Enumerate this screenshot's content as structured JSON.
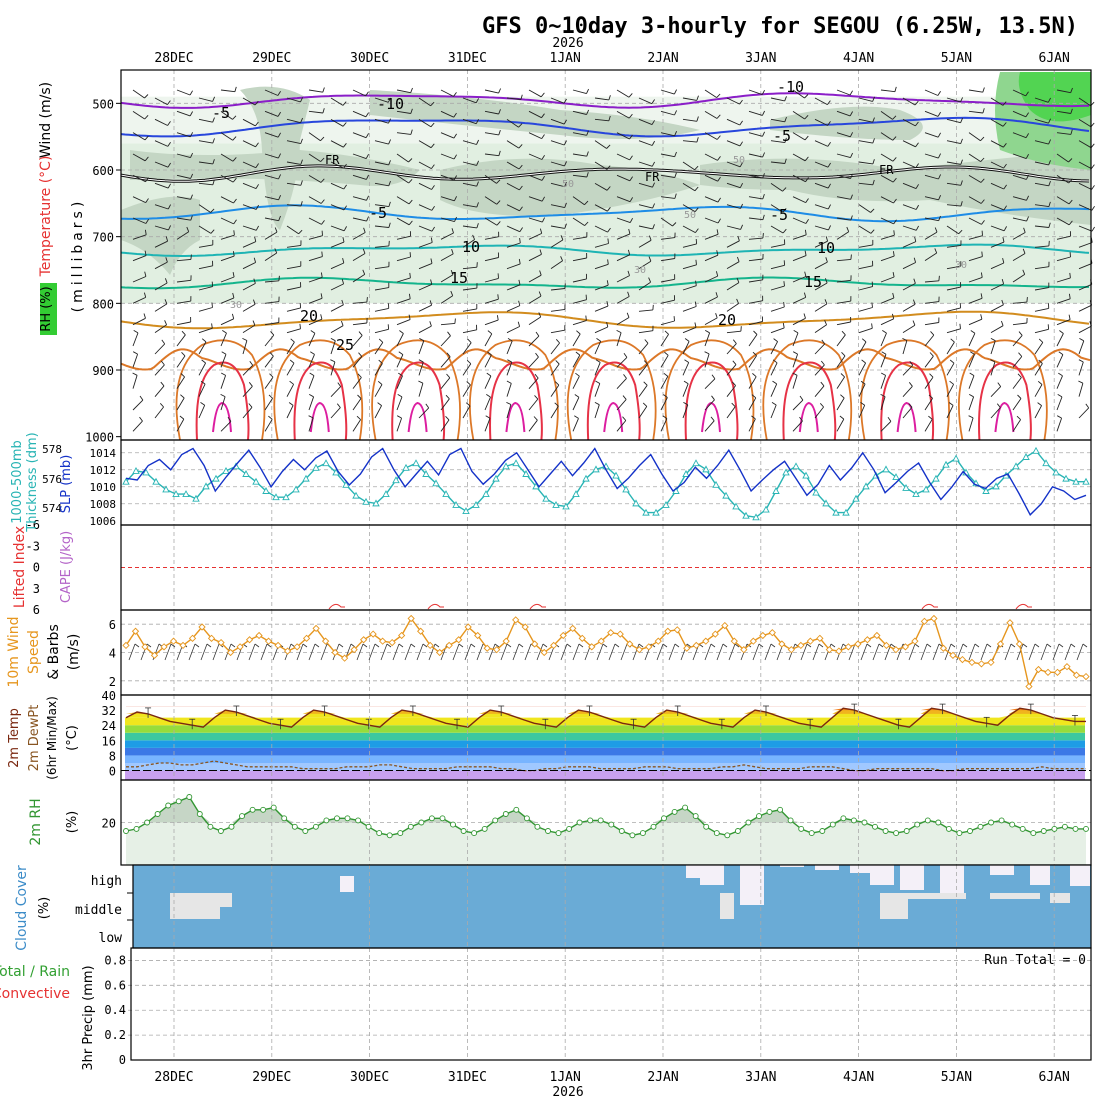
{
  "title": "GFS 0~10day 3-hourly for SEGOU (6.25W, 13.5N)",
  "year": "2026",
  "dates": [
    "28DEC",
    "29DEC",
    "30DEC",
    "31DEC",
    "1JAN",
    "2JAN",
    "3JAN",
    "4JAN",
    "5JAN",
    "6JAN"
  ],
  "run_total": "Run Total = 0",
  "colors": {
    "axis": "#000000",
    "grid": "#aaaaaa",
    "rh_light": "#e1efe1",
    "rh_mid": "#c4d6c4",
    "rh_dark": "#8fd68f",
    "rh_bright": "#52d452",
    "t_minus10": "#8a1ec8",
    "t_minus5": "#2846dc",
    "t_fr": "#111111",
    "t_plus5": "#1e8ce6",
    "t_10": "#1eb4b4",
    "t_15": "#14b48c",
    "t_20": "#d28c1e",
    "t_25": "#dc7828",
    "t_30": "#e63246",
    "t_35": "#dc1ea0",
    "slp": "#1432c8",
    "thickness": "#28b4b4",
    "cape": "#b464c8",
    "lifted": "#e63232",
    "wind10": "#e6961e",
    "temp2m": "#7a2810",
    "dew2m": "#885522",
    "rh2m": "#329632",
    "cloud": "#6aabd6",
    "cloud_bg": "#f4f0f8",
    "precip_total": "#32a032",
    "precip_conv": "#e63232"
  },
  "panels": {
    "upper": {
      "left_labels": [
        "Wind (m/s)",
        "Temperature (°C)",
        "RH (%)"
      ],
      "axis_label": "(millibars)",
      "ticks": [
        "500",
        "600",
        "700",
        "800",
        "900",
        "1000"
      ],
      "contour_labels": {
        "minus10": "-10",
        "minus5": "-5",
        "fr": "FR",
        "plus5": "5",
        "ten": "10",
        "fifteen": "15",
        "twenty": "20",
        "twentyfive": "25",
        "rh30": "30",
        "rh50": "50"
      }
    },
    "slp": {
      "labels": [
        "1000-500mb",
        "Thickness (dm)",
        "SLP (mb)"
      ],
      "left_ticks": [
        "578",
        "576",
        "574"
      ],
      "right_ticks": [
        "1014",
        "1012",
        "1010",
        "1008",
        "1006"
      ]
    },
    "cape": {
      "labels": [
        "Lifted Index",
        "CAPE (J/kg)"
      ],
      "ticks": [
        "-6",
        "-3",
        "0",
        "3",
        "6"
      ]
    },
    "wind10": {
      "labels": [
        "10m Wind",
        "Speed",
        "& Barbs",
        "(m/s)"
      ],
      "ticks": [
        "6",
        "4",
        "2"
      ]
    },
    "temp2m": {
      "labels": [
        "2m Temp",
        "2m DewPt",
        "(6hr Min/Max)",
        "(°C)"
      ],
      "ticks": [
        "40",
        "32",
        "24",
        "16",
        "8",
        "0"
      ]
    },
    "rh2m": {
      "labels": [
        "2m RH",
        "(%)"
      ],
      "ticks": [
        "20"
      ]
    },
    "cloud": {
      "labels": [
        "Cloud Cover",
        "(%)"
      ],
      "levels": [
        "high",
        "middle",
        "low"
      ]
    },
    "precip": {
      "labels": [
        "Total / Rain",
        "Convective",
        "3hr Precip (mm)"
      ],
      "ticks": [
        "0.8",
        "0.6",
        "0.4",
        "0.2",
        "0"
      ]
    }
  },
  "chart_data": [
    {
      "type": "line",
      "name": "SLP (mb)",
      "x_step_hours": 3,
      "ylim": [
        1005.5,
        1015.5
      ],
      "values": [
        1011.0,
        1010.8,
        1012.5,
        1013.2,
        1012.0,
        1013.8,
        1014.5,
        1012.5,
        1009.5,
        1011.2,
        1012.8,
        1014.3,
        1012.3,
        1010.0,
        1011.8,
        1013.2,
        1012.0,
        1013.4,
        1014.2,
        1011.8,
        1010.2,
        1011.5,
        1013.5,
        1014.5,
        1012.0,
        1010.0,
        1011.5,
        1013.0,
        1011.4,
        1013.8,
        1014.5,
        1011.8,
        1010.3,
        1011.5,
        1013.1,
        1014.0,
        1012.0,
        1010.0,
        1011.5,
        1013.0,
        1011.3,
        1012.8,
        1014.5,
        1012.0,
        1009.8,
        1011.0,
        1012.5,
        1013.8,
        1011.5,
        1009.5,
        1010.5,
        1012.3,
        1011.0,
        1012.5,
        1014.3,
        1012.0,
        1009.5,
        1010.8,
        1012.0,
        1013.0,
        1011.0,
        1009.0,
        1010.3,
        1012.5,
        1010.8,
        1012.2,
        1014.0,
        1012.0,
        1009.3,
        1010.5,
        1011.8,
        1012.8,
        1010.5,
        1008.5,
        1010.0,
        1011.8,
        1010.3,
        1009.8,
        1011.0,
        1011.5,
        1009.2,
        1006.7,
        1008.0,
        1010.0,
        1009.5,
        1008.5,
        1009.0
      ]
    },
    {
      "type": "line",
      "name": "1000-500mb Thickness (dm)",
      "x_step_hours": 3,
      "ylim": [
        573.0,
        578.5
      ],
      "values": [
        575.8,
        576.5,
        576.4,
        575.8,
        575.3,
        575.0,
        575.0,
        574.7,
        575.5,
        576.0,
        576.5,
        576.8,
        576.3,
        575.8,
        575.2,
        574.8,
        574.8,
        575.3,
        576.0,
        576.7,
        577.0,
        576.4,
        575.6,
        574.9,
        574.5,
        574.4,
        575.0,
        575.9,
        576.7,
        577.0,
        576.3,
        575.7,
        575.0,
        574.3,
        573.9,
        574.3,
        575.0,
        576.0,
        576.8,
        577.0,
        576.3,
        575.5,
        574.7,
        574.3,
        574.2,
        575.0,
        576.0,
        576.6,
        576.8,
        576.2,
        575.3,
        574.4,
        573.8,
        573.8,
        574.3,
        575.2,
        576.3,
        577.0,
        576.6,
        575.6,
        574.9,
        574.2,
        573.6,
        573.5,
        574.0,
        575.2,
        576.4,
        576.8,
        576.2,
        575.1,
        574.4,
        573.8,
        573.8,
        574.7,
        575.5,
        576.2,
        576.6,
        576.1,
        575.4,
        575.0,
        575.3,
        576.0,
        576.9,
        577.3,
        576.4,
        575.7,
        575.2,
        575.5,
        576.2,
        576.8,
        577.4,
        577.8,
        577.0,
        576.4,
        576.0,
        575.8,
        575.8
      ]
    },
    {
      "type": "line",
      "name": "10m Wind Speed (m/s)",
      "x_step_hours": 3,
      "ylim": [
        1.0,
        7.0
      ],
      "values": [
        4.5,
        5.5,
        4.4,
        3.8,
        4.4,
        4.8,
        4.5,
        5.0,
        5.8,
        5.0,
        4.7,
        4.0,
        4.4,
        4.9,
        5.2,
        4.8,
        4.5,
        4.1,
        4.4,
        5.0,
        5.7,
        4.8,
        4.0,
        3.6,
        4.2,
        4.9,
        5.3,
        4.8,
        4.7,
        5.2,
        6.4,
        5.5,
        4.5,
        4.0,
        4.5,
        4.9,
        5.8,
        5.2,
        4.3,
        4.2,
        4.8,
        6.3,
        5.8,
        4.6,
        4.0,
        4.5,
        5.2,
        5.7,
        5.0,
        4.4,
        4.8,
        5.4,
        5.3,
        4.6,
        4.2,
        4.4,
        4.8,
        5.5,
        5.6,
        4.3,
        4.5,
        4.8,
        5.3,
        5.9,
        4.8,
        4.2,
        4.8,
        5.2,
        5.4,
        4.6,
        4.2,
        4.5,
        4.8,
        5.0,
        4.2,
        4.1,
        4.4,
        4.6,
        4.9,
        5.2,
        4.5,
        4.2,
        4.4,
        4.8,
        6.2,
        6.4,
        4.3,
        3.8,
        3.5,
        3.3,
        3.2,
        3.3,
        4.6,
        6.1,
        4.6,
        1.6,
        2.8,
        2.6,
        2.6,
        3.0,
        2.4,
        2.3
      ]
    },
    {
      "type": "line",
      "name": "2m RH (%)",
      "x_step_hours": 3,
      "ylim": [
        0,
        40
      ],
      "values": [
        16,
        17,
        20,
        24,
        28,
        30,
        32,
        24,
        18,
        16,
        18,
        23,
        26,
        26,
        27,
        22,
        18,
        16,
        18,
        21,
        22,
        22,
        21,
        18,
        15,
        14,
        15,
        18,
        20,
        22,
        22,
        19,
        16,
        15,
        17,
        21,
        24,
        26,
        22,
        18,
        16,
        15,
        17,
        20,
        21,
        21,
        19,
        16,
        14,
        15,
        18,
        22,
        25,
        27,
        23,
        18,
        15,
        14,
        16,
        20,
        23,
        25,
        26,
        21,
        17,
        15,
        16,
        19,
        22,
        21,
        20,
        18,
        16,
        15,
        16,
        19,
        21,
        20,
        17,
        15,
        16,
        18,
        20,
        21,
        19,
        17,
        15,
        16,
        17,
        18,
        17,
        17
      ]
    },
    {
      "type": "line",
      "name": "2m Temp (°C)",
      "x_step_hours": 3,
      "ylim": [
        -5,
        40
      ],
      "values": [
        28,
        31,
        30,
        28,
        26,
        25,
        24,
        23,
        28,
        32,
        31,
        29,
        27,
        25,
        24,
        23,
        28,
        32,
        31,
        29,
        27,
        25,
        24,
        23,
        28,
        32,
        31,
        29,
        27,
        25,
        24,
        23,
        28,
        32,
        31,
        29,
        27,
        25,
        24,
        23,
        28,
        32,
        31,
        29,
        27,
        25,
        24,
        23,
        28,
        32,
        31,
        29,
        27,
        25,
        24,
        23,
        28,
        32,
        31,
        29,
        27,
        25,
        24,
        23,
        28,
        33,
        32,
        30,
        28,
        26,
        24,
        23,
        28,
        33,
        32,
        30,
        28,
        26,
        25,
        24,
        29,
        33,
        32,
        30,
        28,
        27,
        26,
        26
      ]
    },
    {
      "type": "line",
      "name": "2m DewPt (°C)",
      "x_step_hours": 3,
      "ylim": [
        -5,
        40
      ],
      "values": [
        2,
        2,
        3,
        4,
        4,
        3,
        3,
        4,
        5,
        4,
        3,
        2,
        2,
        2,
        2,
        2,
        1,
        1,
        1,
        1,
        2,
        2,
        2,
        3,
        3,
        2,
        1,
        1,
        1,
        1,
        2,
        2,
        2,
        2,
        1,
        1,
        0,
        0,
        1,
        1,
        2,
        2,
        2,
        1,
        1,
        1,
        1,
        2,
        2,
        2,
        1,
        1,
        1,
        1,
        2,
        2,
        3,
        2,
        1,
        1,
        1,
        1,
        2,
        2,
        2,
        1,
        0,
        0,
        1,
        1,
        1,
        1,
        1,
        1,
        0,
        0,
        1,
        1,
        1,
        1,
        1,
        1,
        1,
        2,
        1,
        1,
        1,
        1
      ]
    },
    {
      "type": "area",
      "name": "3hr Precip (mm)",
      "x_step_hours": 3,
      "ylim": [
        0,
        0.9
      ],
      "values": []
    }
  ]
}
